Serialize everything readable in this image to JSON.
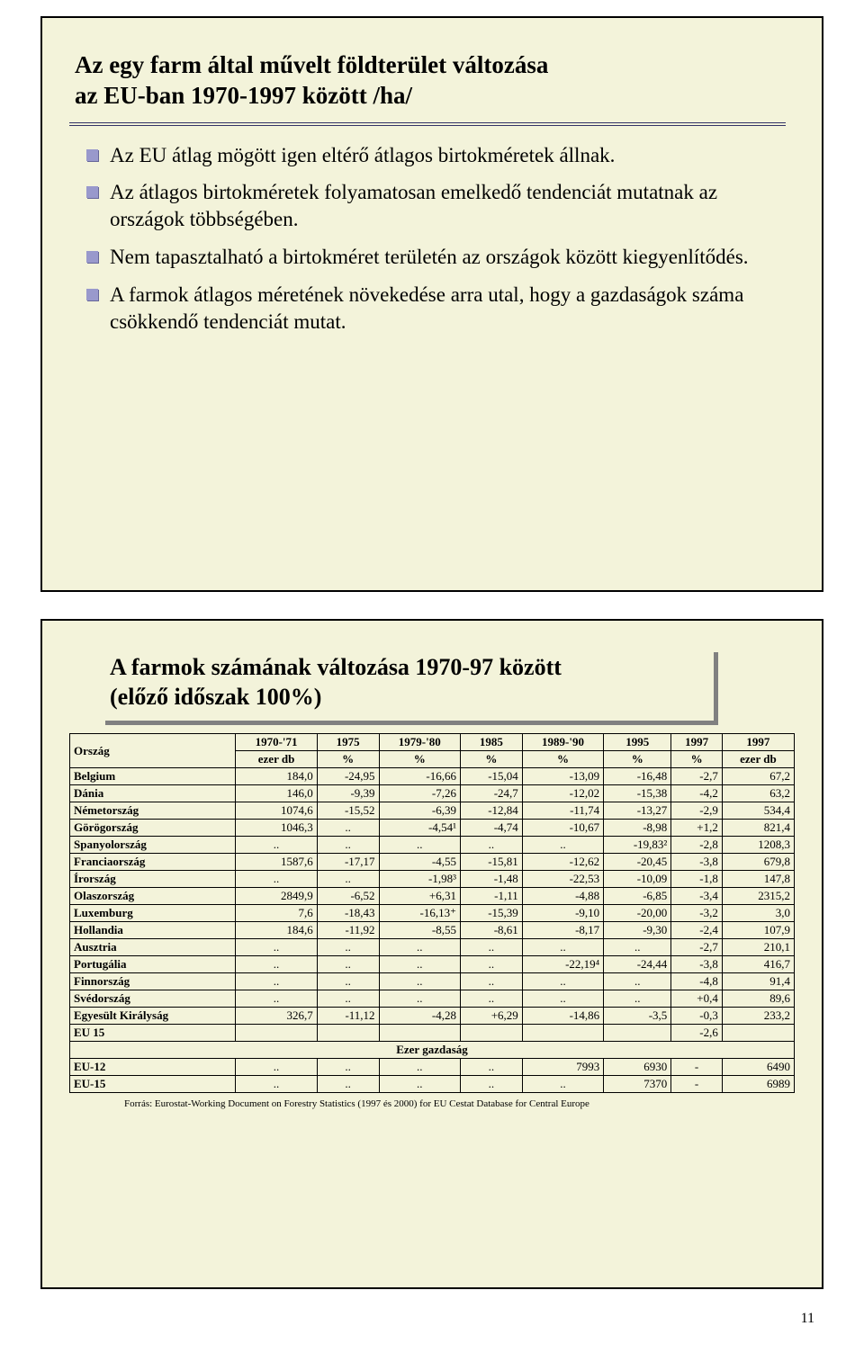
{
  "colors": {
    "slide_bg": "#f3f3da",
    "bullet": "#9999cc",
    "border": "#000000",
    "shadow": "#808080",
    "title_underline": "#333366"
  },
  "slide1": {
    "title_line1": "Az egy farm által művelt földterület változása",
    "title_line2": "az EU-ban 1970-1997 között /ha/",
    "bullets": [
      "Az EU átlag mögött igen eltérő átlagos birtokméretek állnak.",
      "Az átlagos birtokméretek folyamatosan emelkedő tendenciát mutatnak az országok többségében.",
      "Nem tapasztalható a birtokméret területén az országok között kiegyenlítődés.",
      "A farmok átlagos méretének növekedése arra utal, hogy a gazdaságok száma csökkendő tendenciát mutat."
    ]
  },
  "slide2": {
    "title_line1": "A farmok számának változása 1970-97 között",
    "title_line2": "(előző időszak 100%)",
    "table": {
      "headers": [
        [
          "Ország",
          "1970-'71",
          "1975",
          "1979-'80",
          "1985",
          "1989-'90",
          "1995",
          "1997",
          "1997"
        ],
        [
          "",
          "ezer db",
          "%",
          "%",
          "%",
          "%",
          "%",
          "%",
          "ezer db"
        ]
      ],
      "rows": [
        [
          "Belgium",
          "184,0",
          "-24,95",
          "-16,66",
          "-15,04",
          "-13,09",
          "-16,48",
          "-2,7",
          "67,2"
        ],
        [
          "Dánia",
          "146,0",
          "-9,39",
          "-7,26",
          "-24,7",
          "-12,02",
          "-15,38",
          "-4,2",
          "63,2"
        ],
        [
          "Németország",
          "1074,6",
          "-15,52",
          "-6,39",
          "-12,84",
          "-11,74",
          "-13,27",
          "-2,9",
          "534,4"
        ],
        [
          "Görögország",
          "1046,3",
          "..",
          "-4,54¹",
          "-4,74",
          "-10,67",
          "-8,98",
          "+1,2",
          "821,4"
        ],
        [
          "Spanyolország",
          "..",
          "..",
          "..",
          "..",
          "..",
          "-19,83²",
          "-2,8",
          "1208,3"
        ],
        [
          "Franciaország",
          "1587,6",
          "-17,17",
          "-4,55",
          "-15,81",
          "-12,62",
          "-20,45",
          "-3,8",
          "679,8"
        ],
        [
          "Írország",
          "..",
          "..",
          "-1,98³",
          "-1,48",
          "-22,53",
          "-10,09",
          "-1,8",
          "147,8"
        ],
        [
          "Olaszország",
          "2849,9",
          "-6,52",
          "+6,31",
          "-1,11",
          "-4,88",
          "-6,85",
          "-3,4",
          "2315,2"
        ],
        [
          "Luxemburg",
          "7,6",
          "-18,43",
          "-16,13⁺",
          "-15,39",
          "-9,10",
          "-20,00",
          "-3,2",
          "3,0"
        ],
        [
          "Hollandia",
          "184,6",
          "-11,92",
          "-8,55",
          "-8,61",
          "-8,17",
          "-9,30",
          "-2,4",
          "107,9"
        ],
        [
          "Ausztria",
          "..",
          "..",
          "..",
          "..",
          "..",
          "..",
          "-2,7",
          "210,1"
        ],
        [
          "Portugália",
          "..",
          "..",
          "..",
          "..",
          "-22,19⁴",
          "-24,44",
          "-3,8",
          "416,7"
        ],
        [
          "Finnország",
          "..",
          "..",
          "..",
          "..",
          "..",
          "..",
          "-4,8",
          "91,4"
        ],
        [
          "Svédország",
          "..",
          "..",
          "..",
          "..",
          "..",
          "..",
          "+0,4",
          "89,6"
        ],
        [
          "Egyesült Királyság",
          "326,7",
          "-11,12",
          "-4,28",
          "+6,29",
          "-14,86",
          "-3,5",
          "-0,3",
          "233,2"
        ],
        [
          "EU 15",
          "",
          "",
          "",
          "",
          "",
          "",
          "-2,6",
          ""
        ]
      ],
      "subheader": "Ezer gazdaság",
      "rows2": [
        [
          "EU-12",
          "..",
          "..",
          "..",
          "..",
          "7993",
          "6930",
          "-",
          "6490"
        ],
        [
          "EU-15",
          "..",
          "..",
          "..",
          "..",
          "..",
          "7370",
          "-",
          "6989"
        ]
      ]
    },
    "source": "Forrás: Eurostat-Working Document on Forestry Statistics (1997 és 2000) for EU Cestat Database for Central Europe"
  },
  "page_number": "11"
}
